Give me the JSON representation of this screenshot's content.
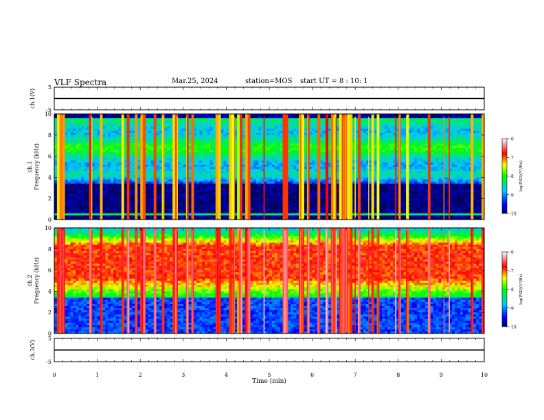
{
  "header": {
    "title": "VLF Spectra",
    "date": "Mar.25, 2024",
    "station": "station=MOS",
    "start": "start UT =  8 : 10: 1"
  },
  "chart_data": [
    {
      "type": "line",
      "panel": "ch1-voltage",
      "ylabel": "ch.1(V)",
      "ylim": [
        -5,
        5
      ],
      "yticks": [
        "5",
        "-5"
      ],
      "x": [
        0,
        10
      ],
      "y": [
        0,
        0
      ]
    },
    {
      "type": "heatmap",
      "panel": "ch1-spectrogram",
      "ylabel": "ch.1\nFrequency (kHz)",
      "ylim": [
        0,
        10
      ],
      "yticks": [
        "0",
        "2",
        "4",
        "6",
        "8",
        "10"
      ],
      "colorbar": {
        "label": "log(PSD)(V²/Hz)",
        "ticks": [
          "-6",
          "-7",
          "-8",
          "-9",
          "-10"
        ],
        "range": [
          -10,
          -6
        ]
      },
      "colors": [
        "#000080",
        "#0000ff",
        "#00ffff",
        "#00ff00",
        "#ffff00",
        "#ff0000",
        "#ffffff"
      ]
    },
    {
      "type": "heatmap",
      "panel": "ch2-spectrogram",
      "ylabel": "ch.2\nFrequency (kHz)",
      "ylim": [
        0,
        10
      ],
      "yticks": [
        "0",
        "2",
        "4",
        "6",
        "8",
        "10"
      ],
      "colorbar": {
        "label": "log(PSD)(V²/Hz)",
        "ticks": [
          "-6",
          "-7",
          "-8",
          "-9",
          "-10"
        ],
        "range": [
          -10,
          -6
        ]
      }
    },
    {
      "type": "line",
      "panel": "ch3-voltage",
      "ylabel": "ch.3(V)",
      "ylim": [
        -5,
        5
      ],
      "yticks": [
        "5",
        "-5"
      ],
      "x": [
        0,
        10
      ],
      "y": [
        0,
        0
      ]
    }
  ],
  "xaxis": {
    "label": "Time (min)",
    "range": [
      0,
      10
    ],
    "ticks": [
      "0",
      "1",
      "2",
      "3",
      "4",
      "5",
      "6",
      "7",
      "8",
      "9",
      "10"
    ]
  }
}
